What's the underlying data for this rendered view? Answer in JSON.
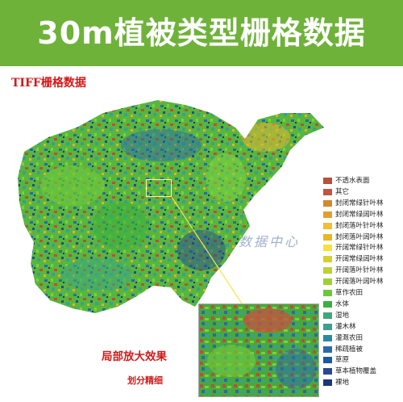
{
  "banner": {
    "title": "30m植被类型栅格数据",
    "color": "#6fb23a"
  },
  "map_label": "TIFF栅格数据",
  "inset_label": "局部放大效果",
  "detail_label": "划分精细",
  "watermark": "数据中心",
  "legend": [
    {
      "label": "不透水表面",
      "color": "#b8503a"
    },
    {
      "label": "其它",
      "color": "#c0563f"
    },
    {
      "label": "封闭常绿针叶林",
      "color": "#d08a2e"
    },
    {
      "label": "封闭常绿阔叶林",
      "color": "#e0a030"
    },
    {
      "label": "封闭落叶针叶林",
      "color": "#f0c030"
    },
    {
      "label": "封闭落叶阔叶林",
      "color": "#e8b820"
    },
    {
      "label": "开阔常绿针叶林",
      "color": "#f6e23a"
    },
    {
      "label": "开阔常绿阔叶林",
      "color": "#d8d02a"
    },
    {
      "label": "开阔落叶针叶林",
      "color": "#bcd230"
    },
    {
      "label": "开阔落叶阔叶林",
      "color": "#a0d030"
    },
    {
      "label": "草作农田",
      "color": "#6cc83a"
    },
    {
      "label": "水体",
      "color": "#3ab040"
    },
    {
      "label": "湿地",
      "color": "#40a878"
    },
    {
      "label": "灌木林",
      "color": "#3aa090"
    },
    {
      "label": "灌溉农田",
      "color": "#2a8aa0"
    },
    {
      "label": "稀疏植被",
      "color": "#2a6aa8"
    },
    {
      "label": "草原",
      "color": "#1a5aa0"
    },
    {
      "label": "草本植物覆盖",
      "color": "#2a4890"
    },
    {
      "label": "裸地",
      "color": "#1a3878"
    }
  ]
}
